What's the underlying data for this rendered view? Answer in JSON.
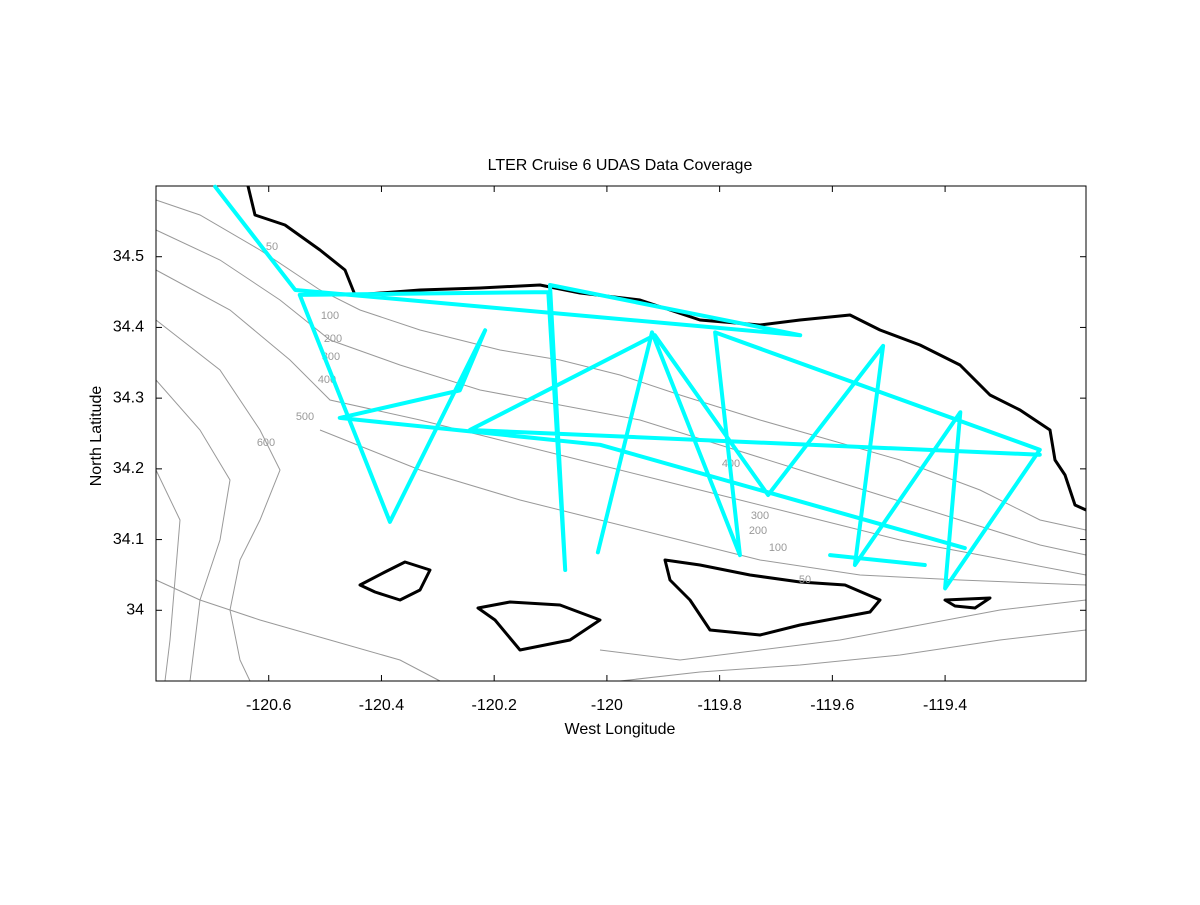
{
  "chart_data": {
    "type": "line",
    "title": "LTER Cruise 6 UDAS Data Coverage",
    "x_label": "West Longitude",
    "y_label": "North Latitude",
    "color": "#00ffff",
    "x": [
      -120.695,
      -120.553,
      -119.657,
      -120.101,
      -120.074,
      -120.104,
      -120.545,
      -120.385,
      -120.216,
      -120.261,
      -120.474,
      -120.012,
      -119.365,
      null,
      -120.016,
      -119.92,
      -119.764,
      -119.808,
      -119.232,
      -119.4,
      -119.373,
      -119.56,
      -119.51,
      -119.714,
      -119.915,
      -120.243,
      -119.232,
      null,
      -119.604,
      -119.436
    ],
    "values": [
      34.599,
      34.453,
      34.389,
      34.46,
      34.057,
      34.45,
      34.446,
      34.125,
      34.396,
      34.311,
      34.272,
      34.234,
      34.088,
      null,
      34.082,
      34.393,
      34.078,
      34.393,
      34.227,
      34.031,
      34.28,
      34.064,
      34.374,
      34.163,
      34.389,
      34.255,
      34.22,
      null,
      34.078,
      34.064
    ],
    "xlim": [
      -120.8,
      -119.15
    ],
    "ylim": [
      33.9,
      34.6
    ],
    "xticks": [
      -120.6,
      -120.4,
      -120.2,
      -120,
      -119.8,
      -119.6,
      -119.4
    ],
    "yticks": [
      34,
      34.1,
      34.2,
      34.3,
      34.4,
      34.5
    ],
    "contour_labels": [
      50,
      100,
      200,
      300,
      400,
      500,
      600,
      400,
      300,
      200,
      100,
      50
    ]
  }
}
